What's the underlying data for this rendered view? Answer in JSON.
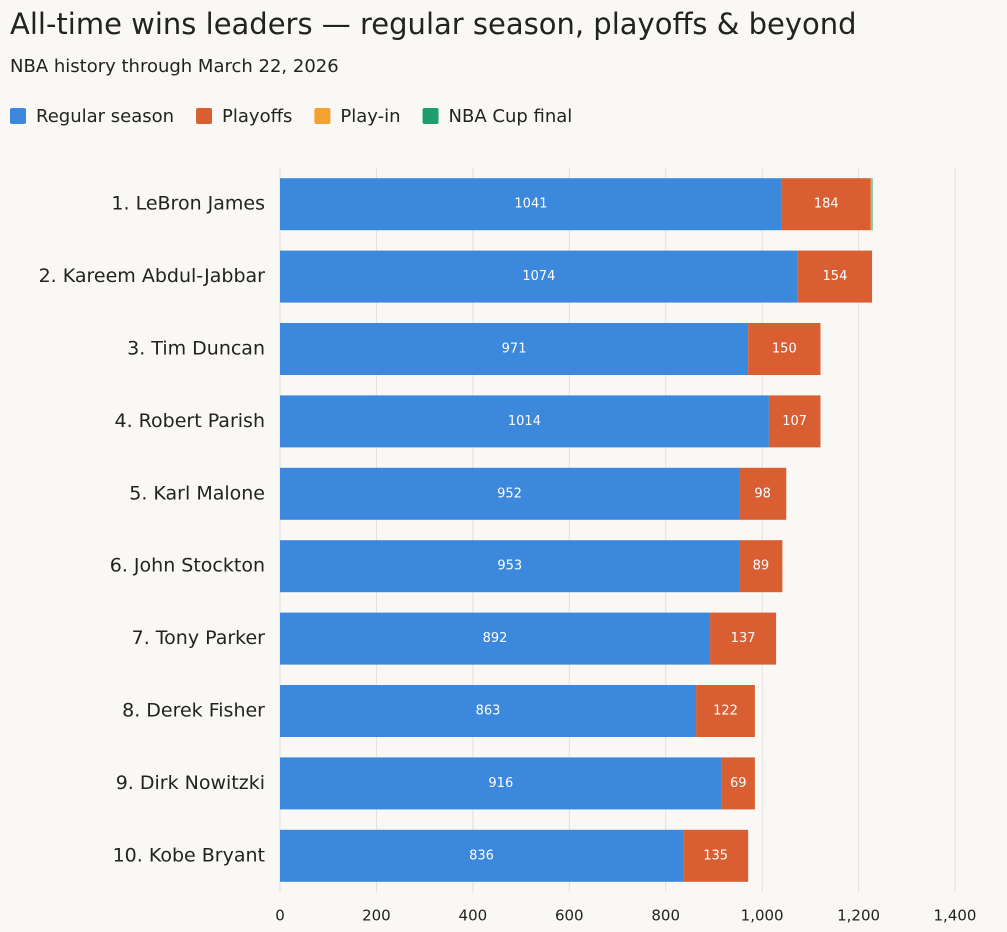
{
  "chart_data": {
    "type": "stacked-bar-horizontal",
    "title": "All-time wins leaders — regular season, playoffs & beyond",
    "subtitle": "NBA history through March 22, 2026",
    "categories": [
      "1. LeBron James",
      "2. Kareem Abdul-Jabbar",
      "3. Tim Duncan",
      "4. Robert Parish",
      "5. Karl Malone",
      "6. John Stockton",
      "7. Tony Parker",
      "8. Derek Fisher",
      "9. Dirk Nowitzki",
      "10. Kobe Bryant"
    ],
    "series": [
      {
        "name": "Regular season",
        "color": "#3b88dd",
        "values": [
          1041,
          1074,
          971,
          1014,
          952,
          953,
          892,
          863,
          916,
          836
        ]
      },
      {
        "name": "Playoffs",
        "color": "#d95f33",
        "values": [
          184,
          154,
          150,
          107,
          98,
          89,
          137,
          122,
          69,
          135
        ]
      },
      {
        "name": "Play-in",
        "color": "#f2a22e",
        "values": [
          3,
          0,
          0,
          0,
          0,
          0,
          0,
          0,
          0,
          0
        ]
      },
      {
        "name": "NBA Cup final",
        "color": "#1f9d70",
        "values": [
          1,
          0,
          0,
          0,
          0,
          0,
          0,
          0,
          0,
          0
        ]
      }
    ],
    "xlim": [
      0,
      1400
    ],
    "xticks": [
      0,
      200,
      400,
      600,
      800,
      {
        "value": 1000,
        "label": "1,000"
      },
      {
        "value": 1200,
        "label": "1,200"
      },
      {
        "value": 1400,
        "label": "1,400"
      }
    ],
    "grid": true
  }
}
